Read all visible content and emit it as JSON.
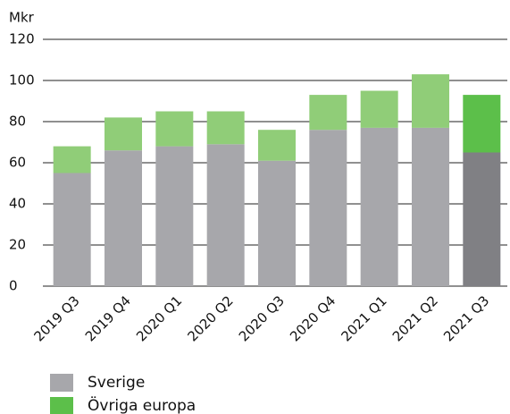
{
  "chart_data": {
    "type": "stacked_bar",
    "y_label": "Mkr",
    "categories": [
      "2019 Q3",
      "2019 Q4",
      "2020 Q1",
      "2020 Q2",
      "2020 Q3",
      "2020 Q4",
      "2021 Q1",
      "2021 Q2",
      "2021 Q3"
    ],
    "series": [
      {
        "name": "Sverige",
        "color": "#a7a7ab",
        "colors": [
          "#a7a7ab",
          "#a7a7ab",
          "#a7a7ab",
          "#a7a7ab",
          "#a7a7ab",
          "#a7a7ab",
          "#a7a7ab",
          "#a7a7ab",
          "#808084"
        ],
        "values": [
          55,
          66,
          68,
          69,
          61,
          76,
          77,
          77,
          65
        ]
      },
      {
        "name": "Övriga europa",
        "color": "#5cbf4a",
        "colors": [
          "#90cd78",
          "#90cd78",
          "#90cd78",
          "#90cd78",
          "#90cd78",
          "#90cd78",
          "#90cd78",
          "#90cd78",
          "#5cbf4a"
        ],
        "values": [
          13,
          16,
          17,
          16,
          15,
          17,
          18,
          26,
          28
        ]
      }
    ],
    "ylim": [
      0,
      120
    ],
    "yticks": [
      0,
      20,
      40,
      60,
      80,
      100,
      120
    ],
    "grid": true
  }
}
